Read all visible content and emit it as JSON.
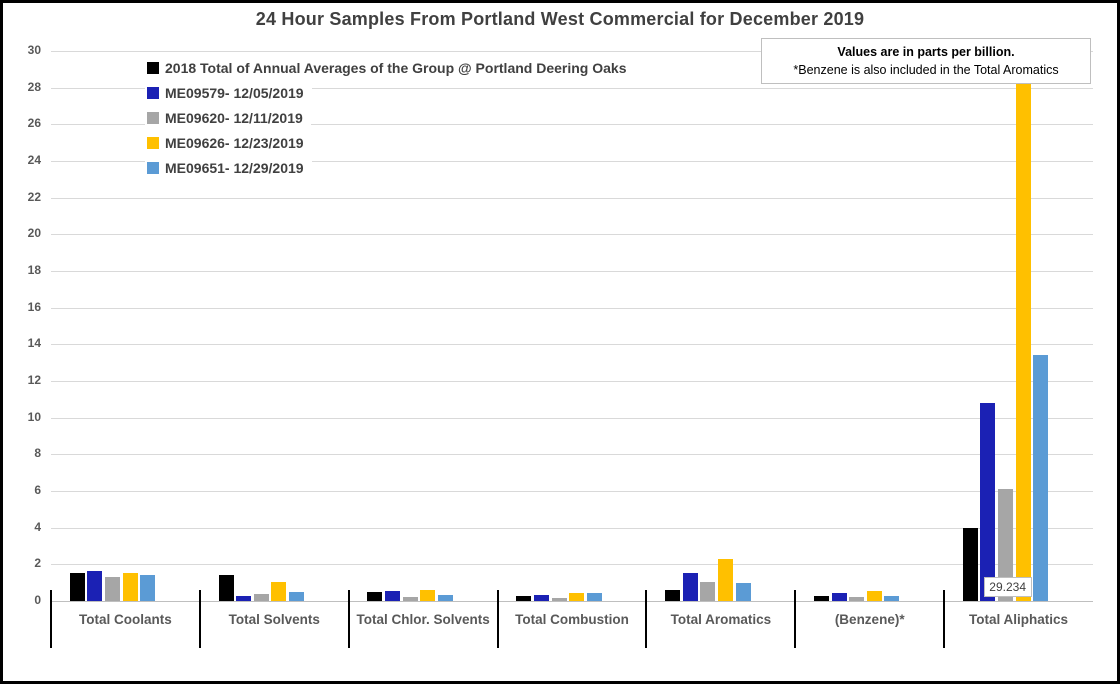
{
  "window": {
    "title": "24 Hour Samples From Portland West Commercial for December 2019"
  },
  "note_box": {
    "line1": "Values are in parts per billion.",
    "line2": "*Benzene is also included in the Total Aromatics"
  },
  "chart_data": {
    "type": "bar",
    "title": "24 Hour Samples From Portland West Commercial for December 2019",
    "unit": "parts per billion",
    "categories": [
      "Total Coolants",
      "Total Solvents",
      "Total Chlor. Solvents",
      "Total Combustion",
      "Total Aromatics",
      "(Benzene)*",
      "Total Aliphatics"
    ],
    "series": [
      {
        "name": "2018 Total of Annual Averages of the Group @ Portland Deering Oaks",
        "color": "#000000",
        "values": [
          1.5,
          1.4,
          0.5,
          0.3,
          0.6,
          0.25,
          4.0
        ]
      },
      {
        "name": "ME09579- 12/05/2019",
        "color": "#1b21b4",
        "values": [
          1.65,
          0.25,
          0.55,
          0.35,
          1.55,
          0.45,
          10.8
        ]
      },
      {
        "name": "ME09620- 12/11/2019",
        "color": "#a6a6a6",
        "values": [
          1.3,
          0.4,
          0.22,
          0.15,
          1.05,
          0.2,
          6.1
        ]
      },
      {
        "name": "ME09626- 12/23/2019",
        "color": "#ffc000",
        "values": [
          1.55,
          1.05,
          0.6,
          0.45,
          2.3,
          0.55,
          29.234
        ]
      },
      {
        "name": "ME09651- 12/29/2019",
        "color": "#5b9bd5",
        "values": [
          1.4,
          0.48,
          0.35,
          0.42,
          1.0,
          0.25,
          13.4
        ]
      }
    ],
    "ylim": [
      0,
      30
    ],
    "ytick_step": 2,
    "grid": true,
    "legend_position": "top-left",
    "data_labels": [
      {
        "series_index": 3,
        "category_index": 6,
        "text": "29.234"
      }
    ]
  },
  "colors": {
    "grid": "#d9d9d9",
    "axis": "#bfbfbf",
    "tick_text": "#595959",
    "title_text": "#404040",
    "separator": "#000000"
  }
}
